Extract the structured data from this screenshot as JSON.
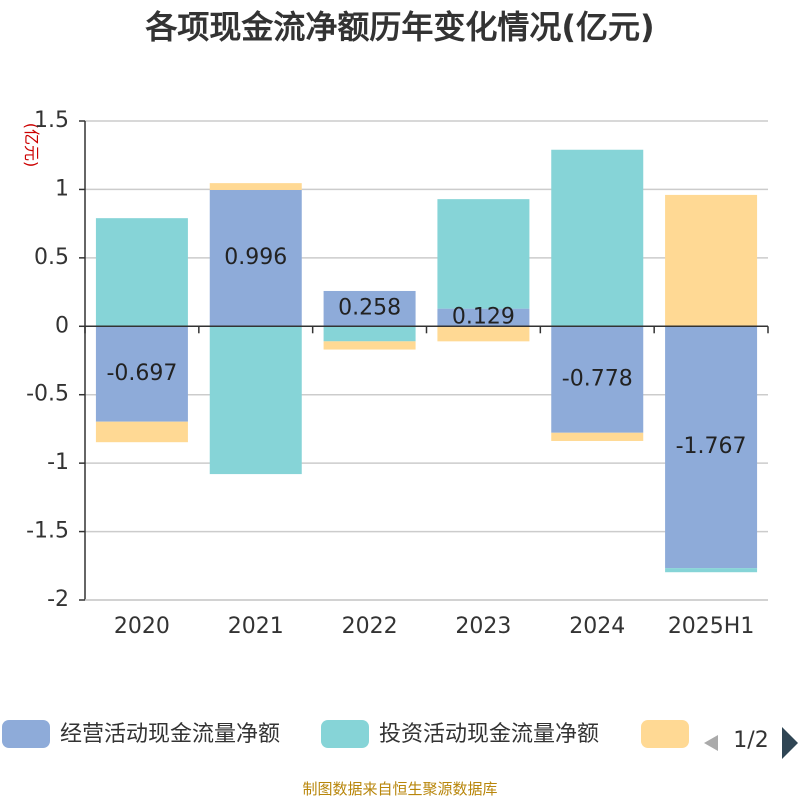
{
  "chart_data": {
    "type": "bar",
    "stacked": true,
    "title": "各项现金流净额历年变化情况(亿元)",
    "ylabel": "(亿元)",
    "categories": [
      "2020",
      "2021",
      "2022",
      "2023",
      "2024",
      "2025H1"
    ],
    "ylim": [
      -2,
      1.5
    ],
    "yticks": [
      1.5,
      1,
      0.5,
      0,
      -0.5,
      -1,
      -1.5,
      -2
    ],
    "grid": true,
    "series": [
      {
        "name": "经营活动现金流量净额",
        "color": "#8eabd9",
        "values": [
          -0.697,
          0.996,
          0.258,
          0.129,
          -0.778,
          -1.767
        ],
        "labels_shown": true
      },
      {
        "name": "投资活动现金流量净额",
        "color": "#86d4d7",
        "values": [
          0.79,
          -1.08,
          -0.11,
          0.8,
          1.29,
          -0.03
        ],
        "labels_shown": false
      },
      {
        "name": "",
        "color": "#ffd994",
        "values": [
          -0.15,
          0.05,
          -0.06,
          -0.11,
          -0.06,
          0.96
        ],
        "labels_shown": false
      }
    ],
    "legend": {
      "placement": "bottom",
      "page": "1/2"
    }
  },
  "source": "制图数据来自恒生聚源数据库"
}
